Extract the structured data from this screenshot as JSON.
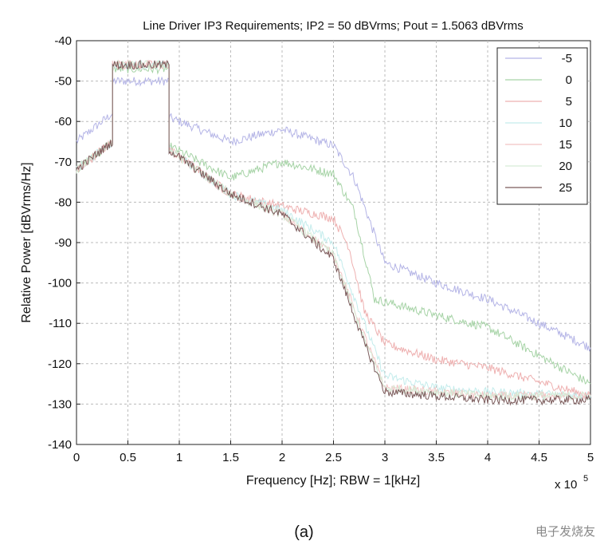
{
  "chart_data": {
    "type": "line",
    "title": "Line Driver IP3 Requirements; IP2 = 50 dBVrms; Pout = 1.5063 dBVrms",
    "xlabel": "Frequency [Hz]; RBW = 1[kHz]",
    "ylabel": "Relative Power [dBVrms/Hz]",
    "x_exponent": "x 10",
    "x_exponent_power": "5",
    "xlim": [
      0,
      5
    ],
    "ylim": [
      -140,
      -40
    ],
    "xticks": [
      0,
      0.5,
      1,
      1.5,
      2,
      2.5,
      3,
      3.5,
      4,
      4.5,
      5
    ],
    "xtick_labels": [
      "0",
      "0.5",
      "1",
      "1.5",
      "2",
      "2.5",
      "3",
      "3.5",
      "4",
      "4.5",
      "5"
    ],
    "yticks": [
      -40,
      -50,
      -60,
      -70,
      -80,
      -90,
      -100,
      -110,
      -120,
      -130,
      -140
    ],
    "ytick_labels": [
      "-40",
      "-50",
      "-60",
      "-70",
      "-80",
      "-90",
      "-100",
      "-110",
      "-120",
      "-130",
      "-140"
    ],
    "grid": true,
    "legend_position": "top-right",
    "series": [
      {
        "name": "-5",
        "color": "#b4b4e6",
        "x": [
          0,
          0.35,
          0.35,
          0.9,
          0.9,
          1.5,
          2.0,
          2.5,
          2.7,
          3.0,
          3.5,
          4.0,
          5.0
        ],
        "y": [
          -65,
          -58,
          -50,
          -50,
          -59,
          -65,
          -62,
          -66,
          -74,
          -95,
          -100,
          -104,
          -116
        ]
      },
      {
        "name": "0",
        "color": "#a6d3a6",
        "x": [
          0,
          0.35,
          0.35,
          0.9,
          0.9,
          1.5,
          2.0,
          2.5,
          2.7,
          2.9,
          3.5,
          4.0,
          5.0
        ],
        "y": [
          -72,
          -65,
          -47,
          -47,
          -66,
          -74,
          -70,
          -73,
          -82,
          -104,
          -108,
          -111,
          -125
        ]
      },
      {
        "name": "5",
        "color": "#eeb0b0",
        "x": [
          0,
          0.35,
          0.35,
          0.9,
          0.9,
          1.5,
          2.0,
          2.5,
          2.65,
          2.8,
          3.0,
          3.5,
          4.0,
          5.0
        ],
        "y": [
          -72,
          -65,
          -46,
          -46,
          -67,
          -78,
          -81,
          -84,
          -91,
          -107,
          -115,
          -119,
          -121,
          -128
        ]
      },
      {
        "name": "10",
        "color": "#c4ecec",
        "x": [
          0,
          0.35,
          0.35,
          0.9,
          0.9,
          1.5,
          2.0,
          2.5,
          2.8,
          3.0,
          3.5,
          4.0,
          5.0
        ],
        "y": [
          -72,
          -65,
          -46,
          -46,
          -67,
          -78,
          -82,
          -90,
          -110,
          -123,
          -126,
          -127,
          -128
        ]
      },
      {
        "name": "15",
        "color": "#f2c4c4",
        "x": [
          0,
          0.35,
          0.35,
          0.9,
          0.9,
          1.5,
          2.0,
          2.5,
          2.8,
          3.0,
          3.5,
          4.0,
          5.0
        ],
        "y": [
          -72,
          -65,
          -46,
          -46,
          -67,
          -78,
          -83,
          -93,
          -113,
          -126,
          -127,
          -128,
          -128
        ]
      },
      {
        "name": "20",
        "color": "#d6ecd6",
        "x": [
          0,
          0.35,
          0.35,
          0.9,
          0.9,
          1.5,
          2.0,
          2.5,
          2.8,
          3.0,
          3.5,
          4.0,
          5.0
        ],
        "y": [
          -72,
          -65,
          -46,
          -46,
          -67,
          -78,
          -83,
          -93,
          -114,
          -126,
          -127,
          -128,
          -128
        ]
      },
      {
        "name": "25",
        "color": "#7a5a5a",
        "x": [
          0,
          0.35,
          0.35,
          0.9,
          0.9,
          1.5,
          2.0,
          2.5,
          2.8,
          3.0,
          3.5,
          4.0,
          5.0
        ],
        "y": [
          -72,
          -65,
          -46,
          -46,
          -67,
          -78,
          -83,
          -94,
          -115,
          -127,
          -128,
          -129,
          -129
        ]
      }
    ]
  },
  "caption": "(a)",
  "watermark": "电子发烧友"
}
